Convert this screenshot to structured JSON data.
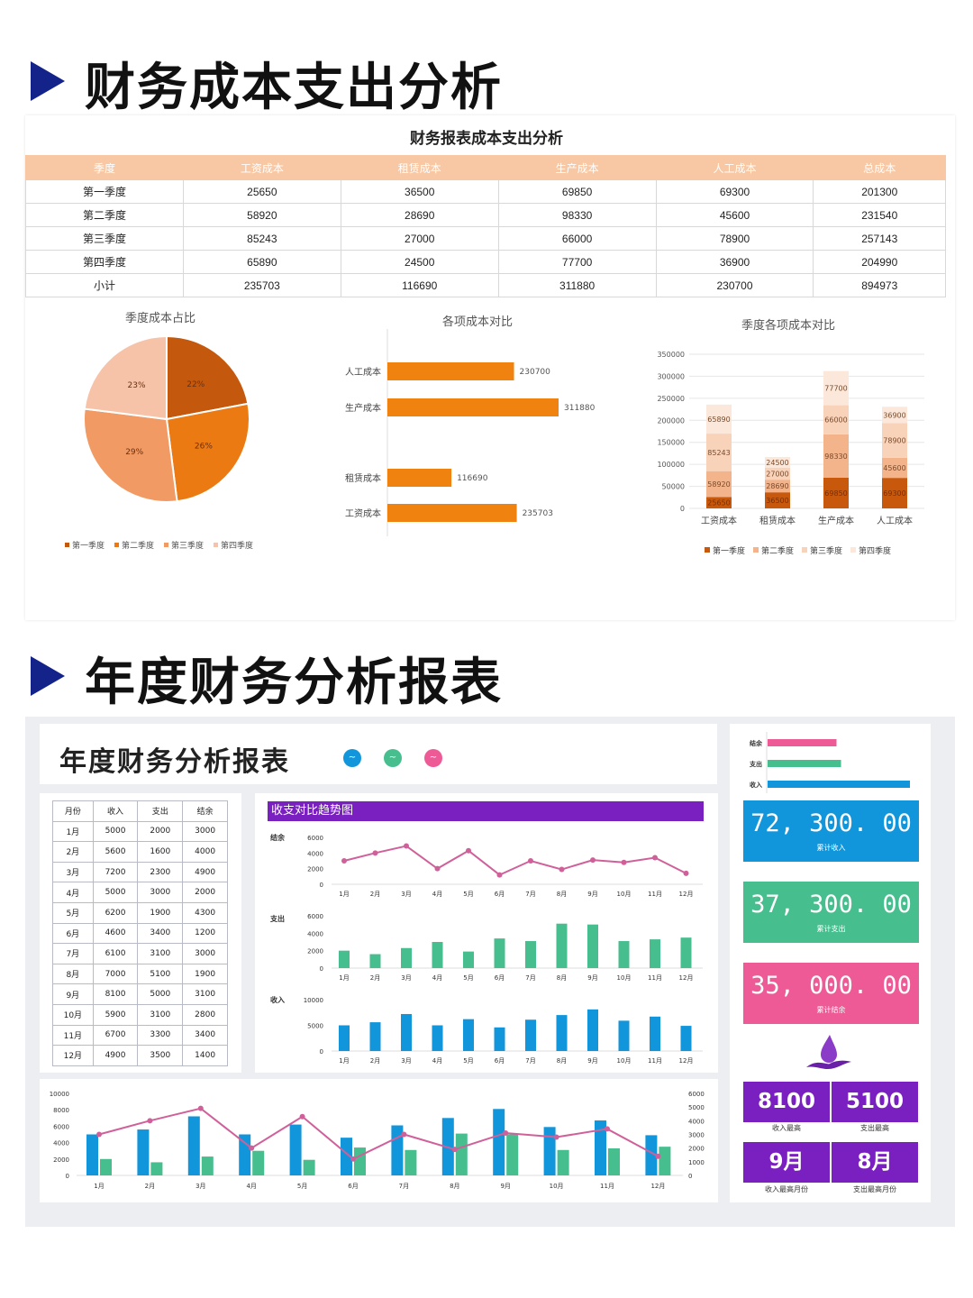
{
  "section1": {
    "title": "财务成本支出分析"
  },
  "cost_table": {
    "title": "财务报表成本支出分析",
    "headers": [
      "季度",
      "工资成本",
      "租赁成本",
      "生产成本",
      "人工成本",
      "总成本"
    ],
    "rows": [
      [
        "第一季度",
        "25650",
        "36500",
        "69850",
        "69300",
        "201300"
      ],
      [
        "第二季度",
        "58920",
        "28690",
        "98330",
        "45600",
        "231540"
      ],
      [
        "第三季度",
        "85243",
        "27000",
        "66000",
        "78900",
        "257143"
      ],
      [
        "第四季度",
        "65890",
        "24500",
        "77700",
        "36900",
        "204990"
      ],
      [
        "小计",
        "235703",
        "116690",
        "311880",
        "230700",
        "894973"
      ]
    ]
  },
  "colors": {
    "q1": "#c4590d",
    "q2": "#ec7a12",
    "q3": "#f29a63",
    "q4": "#f6c3a8",
    "bar": "#f0820f",
    "income": "#1296db",
    "expense": "#47be8e",
    "balance": "#d0609a",
    "purple": "#7a1fc0",
    "pink": "#ee5a96",
    "navy": "#14238a"
  },
  "chart_data": [
    {
      "type": "pie",
      "title": "季度成本占比",
      "categories": [
        "第一季度",
        "第二季度",
        "第三季度",
        "第四季度"
      ],
      "values": [
        22,
        26,
        29,
        23
      ],
      "labels": [
        "22%",
        "26%",
        "29%",
        "23%"
      ],
      "legend": "bottom"
    },
    {
      "type": "bar",
      "orientation": "horizontal",
      "title": "各项成本对比",
      "categories": [
        "人工成本",
        "生产成本",
        "租赁成本",
        "工资成本"
      ],
      "values": [
        230700,
        311880,
        116690,
        235703
      ],
      "labels": [
        "230700",
        "311880",
        "116690",
        "235703"
      ]
    },
    {
      "type": "bar",
      "stacked": true,
      "title": "季度各项成本对比",
      "categories": [
        "工资成本",
        "租赁成本",
        "生产成本",
        "人工成本"
      ],
      "series": [
        {
          "name": "第一季度",
          "values": [
            25650,
            36500,
            69850,
            69300
          ]
        },
        {
          "name": "第二季度",
          "values": [
            58920,
            28690,
            98330,
            45600
          ]
        },
        {
          "name": "第三季度",
          "values": [
            85243,
            27000,
            66000,
            78900
          ]
        },
        {
          "name": "第四季度",
          "values": [
            65890,
            24500,
            77700,
            36900
          ]
        }
      ],
      "ylim": [
        0,
        350000
      ],
      "yticks": [
        "0",
        "50000",
        "100000",
        "150000",
        "200000",
        "250000",
        "300000",
        "350000"
      ],
      "grid": true,
      "legend": "bottom"
    },
    {
      "type": "line",
      "title": "收支对比趋势图",
      "ylabel": "结余",
      "x": [
        "1月",
        "2月",
        "3月",
        "4月",
        "5月",
        "6月",
        "7月",
        "8月",
        "9月",
        "10月",
        "11月",
        "12月"
      ],
      "values": [
        3000,
        4000,
        4900,
        2000,
        4300,
        1200,
        3000,
        1900,
        3100,
        2800,
        3400,
        1400
      ],
      "ylim": [
        0,
        6000
      ],
      "yticks": [
        "0",
        "2000",
        "4000",
        "6000"
      ]
    },
    {
      "type": "bar",
      "ylabel": "支出",
      "x": [
        "1月",
        "2月",
        "3月",
        "4月",
        "5月",
        "6月",
        "7月",
        "8月",
        "9月",
        "10月",
        "11月",
        "12月"
      ],
      "values": [
        2000,
        1600,
        2300,
        3000,
        1900,
        3400,
        3100,
        5100,
        5000,
        3100,
        3300,
        3500
      ],
      "ylim": [
        0,
        6000
      ],
      "yticks": [
        "0",
        "2000",
        "4000",
        "6000"
      ]
    },
    {
      "type": "bar",
      "ylabel": "收入",
      "x": [
        "1月",
        "2月",
        "3月",
        "4月",
        "5月",
        "6月",
        "7月",
        "8月",
        "9月",
        "10月",
        "11月",
        "12月"
      ],
      "values": [
        5000,
        5600,
        7200,
        5000,
        6200,
        4600,
        6100,
        7000,
        8100,
        5900,
        6700,
        4900
      ],
      "ylim": [
        0,
        10000
      ],
      "yticks": [
        "0",
        "5000",
        "10000"
      ]
    },
    {
      "type": "bar",
      "combo": true,
      "x": [
        "1月",
        "2月",
        "3月",
        "4月",
        "5月",
        "6月",
        "7月",
        "8月",
        "9月",
        "10月",
        "11月",
        "12月"
      ],
      "series": [
        {
          "values": [
            5000,
            5600,
            7200,
            5000,
            6200,
            4600,
            6100,
            7000,
            8100,
            5900,
            6700,
            4900
          ]
        },
        {
          "values": [
            2000,
            1600,
            2300,
            3000,
            1900,
            3400,
            3100,
            5100,
            5000,
            3100,
            3300,
            3500
          ]
        },
        {
          "type": "line",
          "axis": "right",
          "values": [
            3000,
            4000,
            4900,
            2000,
            4300,
            1200,
            3000,
            1900,
            3100,
            2800,
            3400,
            1400
          ]
        }
      ],
      "ylim": [
        0,
        10000
      ],
      "yticks": [
        "0",
        "2000",
        "4000",
        "6000",
        "8000",
        "10000"
      ],
      "y2lim": [
        0,
        6000
      ],
      "y2ticks": [
        "0",
        "1000",
        "2000",
        "3000",
        "4000",
        "5000",
        "6000"
      ]
    },
    {
      "type": "bar",
      "orientation": "horizontal",
      "categories": [
        "结余",
        "支出",
        "收入"
      ],
      "values": [
        35000,
        37300,
        72300
      ]
    }
  ],
  "section2": {
    "title": "年度财务分析报表"
  },
  "dashboard": {
    "title": "年度财务分析报表",
    "dots": [
      "income-dot",
      "expense-dot",
      "balance-dot"
    ],
    "annual_table": {
      "headers": [
        "月份",
        "收入",
        "支出",
        "结余"
      ],
      "rows": [
        [
          "1月",
          "5000",
          "2000",
          "3000"
        ],
        [
          "2月",
          "5600",
          "1600",
          "4000"
        ],
        [
          "3月",
          "7200",
          "2300",
          "4900"
        ],
        [
          "4月",
          "5000",
          "3000",
          "2000"
        ],
        [
          "5月",
          "6200",
          "1900",
          "4300"
        ],
        [
          "6月",
          "4600",
          "3400",
          "1200"
        ],
        [
          "7月",
          "6100",
          "3100",
          "3000"
        ],
        [
          "8月",
          "7000",
          "5100",
          "1900"
        ],
        [
          "9月",
          "8100",
          "5000",
          "3100"
        ],
        [
          "10月",
          "5900",
          "3100",
          "2800"
        ],
        [
          "11月",
          "6700",
          "3300",
          "3400"
        ],
        [
          "12月",
          "4900",
          "3500",
          "1400"
        ]
      ]
    },
    "kpis": [
      {
        "value": "72, 300. 00",
        "label": "累计收入"
      },
      {
        "value": "37, 300. 00",
        "label": "累计支出"
      },
      {
        "value": "35, 000. 00",
        "label": "累计结余"
      }
    ],
    "stats": [
      {
        "value": "8100",
        "label": "收入最高"
      },
      {
        "value": "5100",
        "label": "支出最高"
      },
      {
        "value": "9月",
        "label": "收入最高月份"
      },
      {
        "value": "8月",
        "label": "支出最高月份"
      }
    ]
  }
}
